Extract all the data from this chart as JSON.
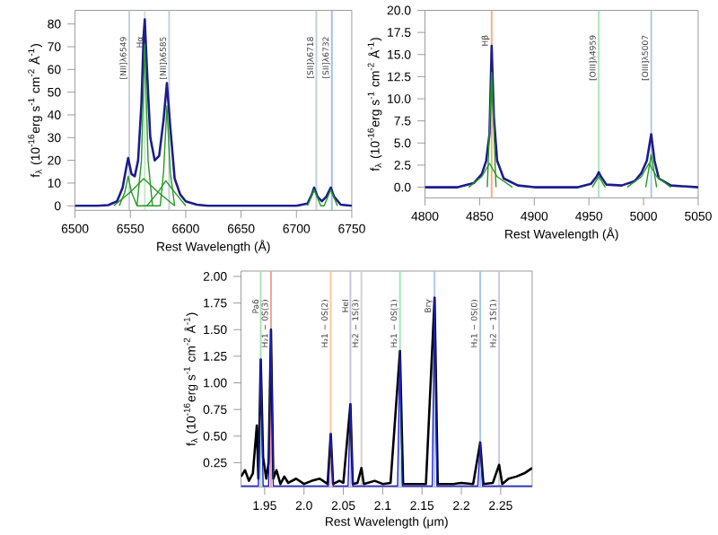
{
  "chart_data": [
    {
      "type": "line",
      "xlabel": "Rest Wavelength (Å)",
      "ylabel": "f$_{λ}$ (10$^{-16}$erg s$^{-1}$ cm$^{-2}$ Å$^{-1}$)",
      "xlim": [
        6500,
        6750
      ],
      "ylim": [
        -2,
        86
      ],
      "xticks": [
        6500,
        6550,
        6600,
        6650,
        6700,
        6750
      ],
      "yticks": [
        0,
        10,
        20,
        30,
        40,
        50,
        60,
        70,
        80
      ],
      "series": [
        {
          "color": "#1c1c8c",
          "x": [
            6500,
            6520,
            6530,
            6538,
            6543,
            6546,
            6548,
            6551,
            6554,
            6557,
            6560,
            6562,
            6563,
            6565,
            6568,
            6572,
            6576,
            6580,
            6583,
            6586,
            6590,
            6595,
            6600,
            6610,
            6620,
            6700,
            6710,
            6714,
            6716,
            6719,
            6723,
            6727,
            6731,
            6734,
            6740,
            6750
          ],
          "values": [
            0,
            0,
            0.3,
            2,
            8,
            16,
            21,
            14,
            13,
            20,
            45,
            75,
            82,
            60,
            30,
            20,
            22,
            38,
            54,
            35,
            12,
            5,
            2,
            0.5,
            0,
            0,
            1,
            5,
            8,
            4,
            2,
            4,
            8,
            4,
            0.5,
            0
          ]
        },
        {
          "color": "#229922",
          "x": [
            6556,
            6560,
            6563,
            6566,
            6570
          ],
          "values": [
            0,
            20,
            71,
            20,
            0
          ]
        },
        {
          "color": "#229922",
          "x": [
            6535,
            6550,
            6562,
            6575,
            6590
          ],
          "values": [
            0,
            6,
            12,
            6,
            0
          ]
        },
        {
          "color": "#229922",
          "x": [
            6540,
            6545,
            6548,
            6551,
            6556,
            6577,
            6580,
            6583,
            6586,
            6590
          ],
          "values": [
            0,
            6,
            13,
            6,
            0,
            0,
            15,
            44,
            15,
            0
          ]
        },
        {
          "color": "#229922",
          "x": [
            6565,
            6575,
            6582,
            6590,
            6600
          ],
          "values": [
            0,
            6,
            11,
            6,
            0
          ]
        },
        {
          "color": "#229922",
          "x": [
            6710,
            6716,
            6722,
            6725,
            6731,
            6737
          ],
          "values": [
            0,
            7,
            0,
            0,
            7,
            0
          ]
        }
      ],
      "ref_lines": [
        {
          "axis": "x",
          "value": 6549,
          "label": "[NII]λ6549",
          "color": "#c8d0d8"
        },
        {
          "axis": "x",
          "value": 6563,
          "label": "Hα",
          "color": "#c8e8c8"
        },
        {
          "axis": "x",
          "value": 6585,
          "label": "[NII]λ6585",
          "color": "#c8d0d8"
        },
        {
          "axis": "x",
          "value": 6718,
          "label": "[SII]λ6718",
          "color": "#c8d0d8"
        },
        {
          "axis": "x",
          "value": 6732,
          "label": "[SII]λ6732",
          "color": "#9cc0e4"
        }
      ]
    },
    {
      "type": "line",
      "xlabel": "Rest Wavelength (Å)",
      "ylabel": "f$_{λ}$ (10$^{-16}$erg s$^{-1}$ cm$^{-2}$ Å$^{-1}$)",
      "xlim": [
        4800,
        5050
      ],
      "ylim": [
        -1.2,
        20
      ],
      "xticks": [
        4800,
        4850,
        4900,
        4950,
        5000,
        5050
      ],
      "yticks": [
        {
          "value": 0,
          "label": "0.0"
        },
        2.5,
        {
          "value": 5,
          "label": "5.0"
        },
        7.5,
        {
          "value": 10,
          "label": "10.0"
        },
        12.5,
        {
          "value": 15,
          "label": "15.0"
        },
        17.5,
        {
          "value": 20,
          "label": "20.0"
        }
      ],
      "series": [
        {
          "color": "#1c1c8c",
          "x": [
            4800,
            4830,
            4845,
            4852,
            4856,
            4859,
            4861,
            4863,
            4866,
            4872,
            4885,
            4900,
            4940,
            4952,
            4957,
            4959,
            4961,
            4966,
            4980,
            4992,
            4998,
            5003,
            5007,
            5010,
            5014,
            5025,
            5050
          ],
          "values": [
            0,
            0,
            0.5,
            1.5,
            3,
            6,
            16,
            8,
            3,
            1,
            0.2,
            0,
            0,
            0.4,
            1.2,
            1.7,
            1.2,
            0.3,
            0.2,
            0.7,
            1.6,
            3,
            6,
            3,
            1,
            0.2,
            0
          ]
        },
        {
          "color": "#229922",
          "x": [
            4857,
            4861,
            4865
          ],
          "values": [
            0,
            13,
            0
          ]
        },
        {
          "color": "#229922",
          "x": [
            4840,
            4852,
            4859,
            4866,
            4880
          ],
          "values": [
            0,
            1.2,
            2.7,
            1.2,
            0
          ]
        },
        {
          "color": "#229922",
          "x": [
            4953,
            4959,
            4965
          ],
          "values": [
            0,
            1.2,
            0
          ]
        },
        {
          "color": "#229922",
          "x": [
            4985,
            4998,
            5005,
            5012,
            5025
          ],
          "values": [
            0,
            1.2,
            2.7,
            1.2,
            0
          ]
        },
        {
          "color": "#229922",
          "x": [
            5002,
            5007,
            5012
          ],
          "values": [
            0,
            3.7,
            0
          ]
        }
      ],
      "ref_lines": [
        {
          "axis": "x",
          "value": 4861,
          "label": "Hβ",
          "color": "#f5b080"
        },
        {
          "axis": "x",
          "value": 4959,
          "label": "[OIII]λ4959",
          "color": "#a8e4b8"
        },
        {
          "axis": "x",
          "value": 5007,
          "label": "[OIII]λ5007",
          "color": "#a8c8e8"
        }
      ]
    },
    {
      "type": "line",
      "xlabel": "Rest Wavelength (μm)",
      "ylabel": "f$_{λ}$ (10$^{-16}$erg s$^{-1}$ cm$^{-2}$ Å$^{-1}$)",
      "xlim": [
        1.92,
        2.29
      ],
      "ylim": [
        0.02,
        2.05
      ],
      "xticks": [
        1.95,
        {
          "value": 2.0,
          "label": "2.0"
        },
        2.05,
        2.1,
        2.15,
        2.2,
        2.25
      ],
      "yticks": [
        0.25,
        {
          "value": 0.5,
          "label": "0.50"
        },
        0.75,
        {
          "value": 1.0,
          "label": "1.00"
        },
        1.25,
        {
          "value": 1.5,
          "label": "1.50"
        },
        1.75,
        {
          "value": 2.0,
          "label": "2.00"
        }
      ],
      "series": [
        {
          "color": "#000000",
          "x": [
            1.92,
            1.925,
            1.93,
            1.935,
            1.94,
            1.942,
            1.945,
            1.948,
            1.952,
            1.955,
            1.958,
            1.961,
            1.965,
            1.97,
            1.975,
            1.98,
            1.99,
            2.0,
            2.01,
            2.02,
            2.03,
            2.034,
            2.037,
            2.045,
            2.05,
            2.059,
            2.062,
            2.068,
            2.073,
            2.076,
            2.09,
            2.1,
            2.11,
            2.122,
            2.126,
            2.14,
            2.155,
            2.166,
            2.17,
            2.19,
            2.2,
            2.215,
            2.224,
            2.228,
            2.24,
            2.248,
            2.252,
            2.26,
            2.27,
            2.28,
            2.29
          ],
          "values": [
            0.12,
            0.18,
            0.08,
            0.15,
            0.6,
            0.1,
            1.22,
            0.3,
            0.1,
            0.25,
            1.5,
            0.1,
            0.18,
            0.05,
            0.12,
            0.06,
            0.1,
            0.05,
            0.08,
            0.1,
            0.05,
            0.52,
            0.05,
            0.08,
            0.06,
            0.8,
            0.05,
            0.06,
            0.2,
            0.05,
            0.08,
            0.05,
            0.06,
            1.3,
            0.05,
            0.05,
            0.05,
            1.8,
            0.05,
            0.05,
            0.06,
            0.05,
            0.44,
            0.05,
            0.06,
            0.23,
            0.05,
            0.1,
            0.12,
            0.15,
            0.2
          ]
        },
        {
          "color": "#1c1ccc",
          "x": [
            1.92,
            1.942,
            1.945,
            1.948,
            1.955,
            1.958,
            1.961,
            2.031,
            2.034,
            2.037,
            2.056,
            2.059,
            2.062,
            2.119,
            2.122,
            2.125,
            2.163,
            2.166,
            2.169,
            2.221,
            2.224,
            2.227,
            2.29
          ],
          "values": [
            0.03,
            0.03,
            1.22,
            0.03,
            0.03,
            1.5,
            0.03,
            0.03,
            0.52,
            0.03,
            0.03,
            0.8,
            0.03,
            0.03,
            1.3,
            0.03,
            0.03,
            1.8,
            0.03,
            0.03,
            0.44,
            0.03,
            0.03
          ]
        }
      ],
      "ref_lines": [
        {
          "axis": "x",
          "value": 1.945,
          "label": "Paδ",
          "color": "#a8e4b8"
        },
        {
          "axis": "x",
          "value": 1.958,
          "label": "H₂1 − 0S(3)",
          "color": "#f0a090"
        },
        {
          "axis": "x",
          "value": 2.034,
          "label": "H₂1 − 0S(2)",
          "color": "#f5c898"
        },
        {
          "axis": "x",
          "value": 2.059,
          "label": "HeI",
          "color": "#c4c4dc"
        },
        {
          "axis": "x",
          "value": 2.073,
          "label": "H₂2 − 1S(3)",
          "color": "#d0d0d0"
        },
        {
          "axis": "x",
          "value": 2.122,
          "label": "H₂1 − 0S(1)",
          "color": "#a8e4b8"
        },
        {
          "axis": "x",
          "value": 2.166,
          "label": "Brγ",
          "color": "#a8c8e8"
        },
        {
          "axis": "x",
          "value": 2.224,
          "label": "H₂1 − 0S(0)",
          "color": "#a8c8e8"
        },
        {
          "axis": "x",
          "value": 2.248,
          "label": "H₂2 − 1S(1)",
          "color": "#d0c8e0"
        }
      ]
    }
  ]
}
